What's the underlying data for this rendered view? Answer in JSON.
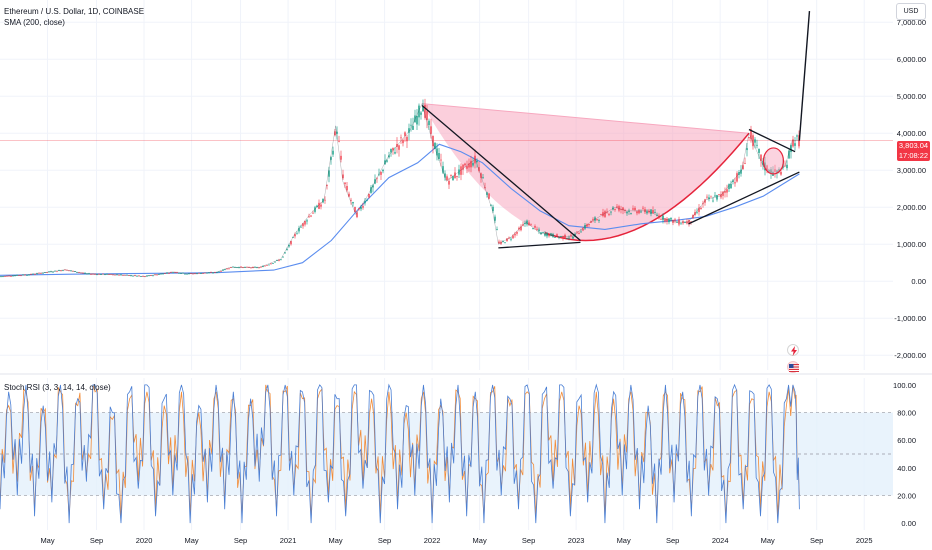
{
  "header": {
    "symbol_title": "Ethereum / U.S. Dollar, 1D, COINBASE",
    "indicator_sma": "SMA (200, close)",
    "indicator_stoch": "Stoch RSI (3, 3, 14, 14, close)"
  },
  "currency": "USD",
  "current_price": {
    "value": 3803.04,
    "label": "3,803.04",
    "countdown": "17:08:22",
    "color": "#f23645"
  },
  "colors": {
    "price_line": "#131722",
    "sma": "#5b8def",
    "cup_fill": "#f7a8bf",
    "cup_curve": "#e5243b",
    "trend": "#131722",
    "stoch_k": "#4a7fd4",
    "stoch_d": "#f28c38",
    "band": "#e3f0fb"
  },
  "icons": [
    "flash-icon",
    "flag-icon"
  ],
  "chart_data": [
    {
      "type": "line",
      "title": "Ethereum / U.S. Dollar, 1D, COINBASE",
      "y_axis": {
        "range": [
          -2400,
          7600
        ],
        "ticks": [
          -2000,
          -1000,
          0,
          1000,
          2000,
          3000,
          4000,
          5000,
          6000,
          7000
        ],
        "tick_labels": [
          "-2,000.00",
          "-1,000.00",
          "0.00",
          "1,000.00",
          "2,000.00",
          "3,000.00",
          "4,000.00",
          "5,000.00",
          "6,000.00",
          "7,000.00"
        ],
        "position": "right"
      },
      "x_axis": {
        "range": [
          2019.0,
          2025.2
        ],
        "ticks": [
          2019.33,
          2019.67,
          2020.0,
          2020.33,
          2020.67,
          2021.0,
          2021.33,
          2021.67,
          2022.0,
          2022.33,
          2022.67,
          2023.0,
          2023.33,
          2023.67,
          2024.0,
          2024.33,
          2024.67,
          2025.0
        ],
        "tick_labels": [
          "May",
          "Sep",
          "2020",
          "May",
          "Sep",
          "2021",
          "May",
          "Sep",
          "2022",
          "May",
          "Sep",
          "2023",
          "May",
          "Sep",
          "2024",
          "May",
          "Sep",
          "2025"
        ]
      },
      "series": [
        {
          "kind": "price",
          "x": [
            2019.0,
            2019.2,
            2019.45,
            2019.6,
            2019.8,
            2020.0,
            2020.2,
            2020.3,
            2020.5,
            2020.6,
            2020.8,
            2020.95,
            2021.05,
            2021.15,
            2021.25,
            2021.33,
            2021.38,
            2021.47,
            2021.55,
            2021.7,
            2021.85,
            2021.93,
            2022.0,
            2022.1,
            2022.2,
            2022.3,
            2022.42,
            2022.46,
            2022.55,
            2022.65,
            2022.75,
            2022.88,
            2022.97,
            2023.1,
            2023.27,
            2023.35,
            2023.5,
            2023.6,
            2023.7,
            2023.78,
            2023.9,
            2024.0,
            2024.15,
            2024.2,
            2024.3,
            2024.38,
            2024.45,
            2024.5,
            2024.55
          ],
          "y": [
            130,
            180,
            310,
            200,
            180,
            130,
            250,
            200,
            240,
            380,
            370,
            600,
            1300,
            1800,
            2200,
            4200,
            2700,
            1800,
            2300,
            3400,
            4100,
            4800,
            3800,
            2700,
            3000,
            3300,
            1900,
            1000,
            1200,
            1600,
            1300,
            1200,
            1200,
            1600,
            2000,
            1900,
            1900,
            1700,
            1600,
            1600,
            2200,
            2300,
            3000,
            4000,
            3100,
            2900,
            3100,
            3800,
            3800
          ]
        },
        {
          "kind": "sma",
          "name": "SMA (200, close)",
          "x": [
            2019.0,
            2019.5,
            2020.0,
            2020.5,
            2020.9,
            2021.1,
            2021.3,
            2021.5,
            2021.7,
            2021.9,
            2022.05,
            2022.2,
            2022.35,
            2022.55,
            2022.75,
            2022.95,
            2023.2,
            2023.45,
            2023.7,
            2023.9,
            2024.1,
            2024.3,
            2024.55
          ],
          "y": [
            160,
            190,
            210,
            230,
            300,
            500,
            1100,
            2000,
            2800,
            3200,
            3700,
            3500,
            3200,
            2500,
            1900,
            1500,
            1400,
            1550,
            1650,
            1750,
            2000,
            2300,
            2900
          ]
        },
        {
          "kind": "projection",
          "x": [
            2024.55,
            2024.62
          ],
          "y": [
            3800,
            7300
          ]
        }
      ]
    },
    {
      "type": "line",
      "title": "Stoch RSI (3, 3, 14, 14, close)",
      "y_axis": {
        "range": [
          -5,
          105
        ],
        "ticks": [
          0,
          20,
          40,
          60,
          80,
          100
        ],
        "tick_labels": [
          "0.00",
          "20.00",
          "40.00",
          "60.00",
          "80.00",
          "100.00"
        ],
        "bands": [
          20,
          50,
          80
        ],
        "position": "right"
      },
      "series": [
        {
          "name": "K",
          "color": "#4a7fd4",
          "x": [
            2019.0,
            2019.06,
            2019.12,
            2019.18,
            2019.24,
            2019.3,
            2019.36,
            2019.42,
            2019.48,
            2019.54,
            2019.6,
            2019.66,
            2019.72,
            2019.78,
            2019.84,
            2019.9,
            2019.96,
            2020.02,
            2020.08,
            2020.14,
            2020.2,
            2020.26,
            2020.32,
            2020.38,
            2020.44,
            2020.5,
            2020.56,
            2020.62,
            2020.68,
            2020.74,
            2020.8,
            2020.86,
            2020.92,
            2020.98,
            2021.04,
            2021.1,
            2021.16,
            2021.22,
            2021.28,
            2021.34,
            2021.4,
            2021.46,
            2021.52,
            2021.58,
            2021.64,
            2021.7,
            2021.76,
            2021.82,
            2021.88,
            2021.94,
            2022.0,
            2022.06,
            2022.12,
            2022.18,
            2022.24,
            2022.3,
            2022.36,
            2022.42,
            2022.48,
            2022.54,
            2022.6,
            2022.66,
            2022.72,
            2022.78,
            2022.84,
            2022.9,
            2022.96,
            2023.02,
            2023.08,
            2023.14,
            2023.2,
            2023.26,
            2023.32,
            2023.38,
            2023.44,
            2023.5,
            2023.56,
            2023.62,
            2023.68,
            2023.74,
            2023.8,
            2023.86,
            2023.92,
            2023.98,
            2024.04,
            2024.1,
            2024.16,
            2024.22,
            2024.28,
            2024.34,
            2024.4,
            2024.46,
            2024.52,
            2024.55
          ],
          "y": [
            10,
            95,
            20,
            100,
            5,
            85,
            15,
            100,
            0,
            90,
            30,
            100,
            10,
            80,
            0,
            95,
            25,
            100,
            5,
            90,
            20,
            100,
            0,
            85,
            15,
            100,
            10,
            95,
            0,
            90,
            30,
            100,
            5,
            100,
            20,
            95,
            0,
            100,
            15,
            90,
            5,
            100,
            25,
            95,
            0,
            100,
            10,
            85,
            20,
            100,
            0,
            90,
            15,
            100,
            5,
            95,
            0,
            100,
            20,
            90,
            10,
            100,
            0,
            95,
            25,
            100,
            5,
            90,
            15,
            100,
            0,
            95,
            20,
            100,
            10,
            85,
            0,
            100,
            15,
            95,
            5,
            100,
            20,
            90,
            0,
            100,
            10,
            95,
            5,
            100,
            0,
            90,
            95,
            10
          ]
        },
        {
          "name": "D",
          "color": "#f28c38",
          "x": [
            2019.0,
            2019.06,
            2019.12,
            2019.18,
            2019.24,
            2019.3,
            2019.36,
            2019.42,
            2019.48,
            2019.54,
            2019.6,
            2019.66,
            2019.72,
            2019.78,
            2019.84,
            2019.9,
            2019.96,
            2020.02,
            2020.08,
            2020.14,
            2020.2,
            2020.26,
            2020.32,
            2020.38,
            2020.44,
            2020.5,
            2020.56,
            2020.62,
            2020.68,
            2020.74,
            2020.8,
            2020.86,
            2020.92,
            2020.98,
            2021.04,
            2021.1,
            2021.16,
            2021.22,
            2021.28,
            2021.34,
            2021.4,
            2021.46,
            2021.52,
            2021.58,
            2021.64,
            2021.7,
            2021.76,
            2021.82,
            2021.88,
            2021.94,
            2022.0,
            2022.06,
            2022.12,
            2022.18,
            2022.24,
            2022.3,
            2022.36,
            2022.42,
            2022.48,
            2022.54,
            2022.6,
            2022.66,
            2022.72,
            2022.78,
            2022.84,
            2022.9,
            2022.96,
            2023.02,
            2023.08,
            2023.14,
            2023.2,
            2023.26,
            2023.32,
            2023.38,
            2023.44,
            2023.5,
            2023.56,
            2023.62,
            2023.68,
            2023.74,
            2023.8,
            2023.86,
            2023.92,
            2023.98,
            2024.04,
            2024.1,
            2024.16,
            2024.22,
            2024.28,
            2024.34,
            2024.4,
            2024.46,
            2024.52,
            2024.55
          ],
          "y": [
            15,
            85,
            30,
            95,
            10,
            80,
            20,
            95,
            5,
            85,
            35,
            95,
            15,
            75,
            5,
            90,
            30,
            95,
            10,
            85,
            25,
            95,
            5,
            80,
            20,
            95,
            15,
            90,
            5,
            85,
            35,
            95,
            10,
            95,
            25,
            90,
            5,
            95,
            20,
            85,
            10,
            95,
            30,
            90,
            5,
            95,
            15,
            80,
            25,
            95,
            5,
            85,
            20,
            95,
            10,
            90,
            5,
            95,
            25,
            85,
            15,
            95,
            5,
            90,
            30,
            95,
            10,
            85,
            20,
            95,
            5,
            90,
            25,
            95,
            15,
            80,
            5,
            95,
            20,
            90,
            10,
            95,
            25,
            85,
            5,
            95,
            15,
            90,
            10,
            95,
            5,
            85,
            90,
            20
          ]
        }
      ]
    }
  ]
}
